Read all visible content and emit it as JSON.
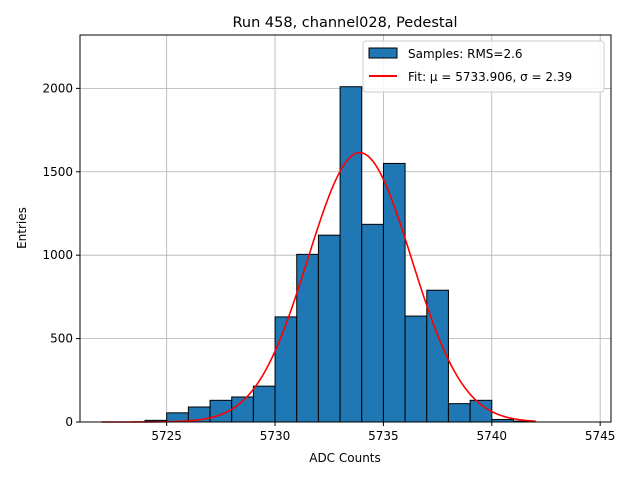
{
  "chart_data": {
    "type": "bar",
    "title": "Run 458, channel028, Pedestal",
    "xlabel": "ADC Counts",
    "ylabel": "Entries",
    "xlim": [
      5721,
      5745.5
    ],
    "ylim": [
      0,
      2320
    ],
    "x_ticks": [
      5725,
      5730,
      5735,
      5740,
      5745
    ],
    "y_ticks": [
      0,
      500,
      1000,
      1500,
      2000
    ],
    "grid": true,
    "legend_position": "top-right",
    "bin_width": 1,
    "bins": [
      {
        "left": 5722,
        "value": 0
      },
      {
        "left": 5723,
        "value": 0
      },
      {
        "left": 5724,
        "value": 10
      },
      {
        "left": 5725,
        "value": 55
      },
      {
        "left": 5726,
        "value": 90
      },
      {
        "left": 5727,
        "value": 130
      },
      {
        "left": 5728,
        "value": 150
      },
      {
        "left": 5729,
        "value": 215
      },
      {
        "left": 5730,
        "value": 630
      },
      {
        "left": 5731,
        "value": 1005
      },
      {
        "left": 5732,
        "value": 1120
      },
      {
        "left": 5733,
        "value": 2010
      },
      {
        "left": 5734,
        "value": 1185
      },
      {
        "left": 5735,
        "value": 1550
      },
      {
        "left": 5736,
        "value": 635
      },
      {
        "left": 5737,
        "value": 790
      },
      {
        "left": 5738,
        "value": 110
      },
      {
        "left": 5739,
        "value": 130
      },
      {
        "left": 5740,
        "value": 15
      },
      {
        "left": 5741,
        "value": 5
      }
    ],
    "fit": {
      "mu": 5733.906,
      "sigma": 2.39,
      "amplitude": 1615,
      "x_range": [
        5722,
        5742
      ]
    },
    "series": [
      {
        "name": "Samples: RMS=2.6",
        "color": "#1f77b4",
        "kind": "histogram"
      },
      {
        "name": "Fit: μ = 5733.906, σ = 2.39",
        "color": "#ff0000",
        "kind": "line"
      }
    ]
  }
}
